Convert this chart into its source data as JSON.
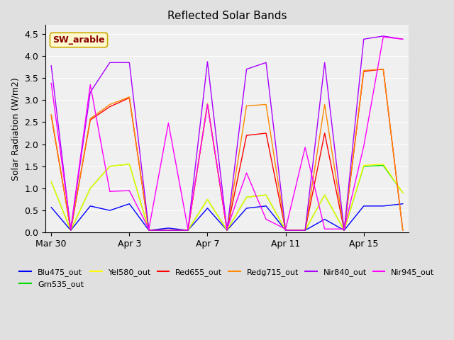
{
  "title": "Reflected Solar Bands",
  "ylabel": "Solar Radiation (W/m2)",
  "annotation": "SW_arable",
  "annotation_color": "#8B0000",
  "annotation_bg": "#FFFACD",
  "annotation_edge": "#CCAA00",
  "ylim": [
    0,
    4.7
  ],
  "yticks": [
    0.0,
    0.5,
    1.0,
    1.5,
    2.0,
    2.5,
    3.0,
    3.5,
    4.0,
    4.5
  ],
  "bg_color": "#E0E0E0",
  "plot_bg": "#F0F0F0",
  "series_colors": {
    "Blu475_out": "#0000FF",
    "Grn535_out": "#00DD00",
    "Yel580_out": "#FFFF00",
    "Red655_out": "#FF0000",
    "Redg715_out": "#FF8800",
    "Nir840_out": "#AA00FF",
    "Nir945_out": "#FF00FF"
  },
  "x_tick_labels": [
    "Mar 30",
    "Apr 3",
    "Apr 7",
    "Apr 11",
    "Apr 15"
  ],
  "x_tick_positions": [
    0,
    4,
    8,
    12,
    16
  ],
  "num_points": 19,
  "data": {
    "Blu475_out": [
      0.57,
      0.05,
      0.6,
      0.5,
      0.65,
      0.05,
      0.1,
      0.05,
      0.55,
      0.05,
      0.55,
      0.6,
      0.05,
      0.05,
      0.3,
      0.05,
      0.6,
      0.6,
      0.65
    ],
    "Grn535_out": [
      1.15,
      0.05,
      1.0,
      1.5,
      1.55,
      0.05,
      0.05,
      0.05,
      0.75,
      0.05,
      0.8,
      0.85,
      0.05,
      0.05,
      0.85,
      0.05,
      1.5,
      1.52,
      0.9
    ],
    "Yel580_out": [
      1.15,
      0.05,
      1.0,
      1.5,
      1.55,
      0.05,
      0.05,
      0.05,
      0.75,
      0.05,
      0.8,
      0.85,
      0.05,
      0.05,
      0.85,
      0.05,
      1.52,
      1.55,
      0.9
    ],
    "Red655_out": [
      2.65,
      0.05,
      2.55,
      2.85,
      3.05,
      0.05,
      0.05,
      0.05,
      2.9,
      0.05,
      2.2,
      2.25,
      0.05,
      0.05,
      2.25,
      0.05,
      3.65,
      3.7,
      0.05
    ],
    "Redg715_out": [
      2.67,
      0.05,
      2.58,
      2.9,
      3.07,
      0.05,
      0.05,
      0.05,
      2.92,
      0.05,
      2.87,
      2.9,
      0.05,
      0.05,
      2.9,
      0.05,
      3.67,
      3.7,
      0.05
    ],
    "Nir840_out": [
      3.78,
      0.05,
      3.18,
      3.85,
      3.85,
      0.05,
      0.05,
      0.05,
      3.87,
      0.05,
      3.7,
      3.85,
      0.05,
      0.05,
      3.85,
      0.05,
      4.38,
      4.45,
      4.38
    ],
    "Nir945_out": [
      3.38,
      0.08,
      3.35,
      0.93,
      0.95,
      0.08,
      2.48,
      0.08,
      2.9,
      0.08,
      1.35,
      0.3,
      0.08,
      1.93,
      0.08,
      0.08,
      1.95,
      4.43,
      4.38
    ]
  }
}
